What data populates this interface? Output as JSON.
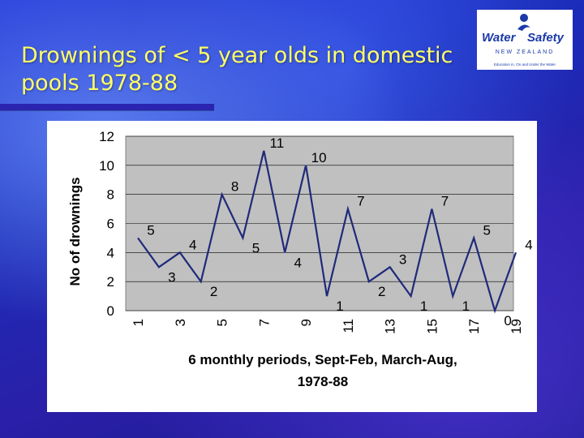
{
  "slide": {
    "title_lines": [
      "Drownings of < 5 year olds in domestic",
      "pools 1978-88"
    ]
  },
  "logo": {
    "brand_left": "Water",
    "brand_right": "Safety",
    "country": "NEW ZEALAND",
    "tagline": "Education in, On and Under the Water"
  },
  "colors": {
    "title": "#ffff66",
    "line": "#1f2a7a",
    "plot_bg": "#c0c0c0",
    "logo_blue": "#1a3aa8"
  },
  "chart_data": {
    "type": "line",
    "title": "",
    "xlabel_lines": [
      "6 monthly periods, Sept-Feb, March-Aug,",
      "1978-88"
    ],
    "ylabel": "No of drownings",
    "x": [
      1,
      2,
      3,
      4,
      5,
      6,
      7,
      8,
      9,
      10,
      11,
      12,
      13,
      14,
      15,
      16,
      17,
      18,
      19
    ],
    "x_tick_labels": [
      "1",
      "3",
      "5",
      "7",
      "9",
      "11",
      "13",
      "15",
      "17",
      "19"
    ],
    "y_ticks": [
      0,
      2,
      4,
      6,
      8,
      10,
      12
    ],
    "ylim": [
      0,
      12
    ],
    "xlim": [
      1,
      19
    ],
    "grid": true,
    "legend": "none",
    "series": [
      {
        "values": [
          5,
          3,
          4,
          2,
          8,
          5,
          11,
          4,
          10,
          1,
          7,
          2,
          3,
          1,
          7,
          1,
          5,
          0,
          4
        ],
        "data_labels": [
          "5",
          "3",
          "4",
          "2",
          "8",
          "5",
          "11",
          "4",
          "10",
          "1",
          "7",
          "2",
          "3",
          "1",
          "7",
          "1",
          "5",
          "0",
          "4"
        ]
      }
    ]
  }
}
